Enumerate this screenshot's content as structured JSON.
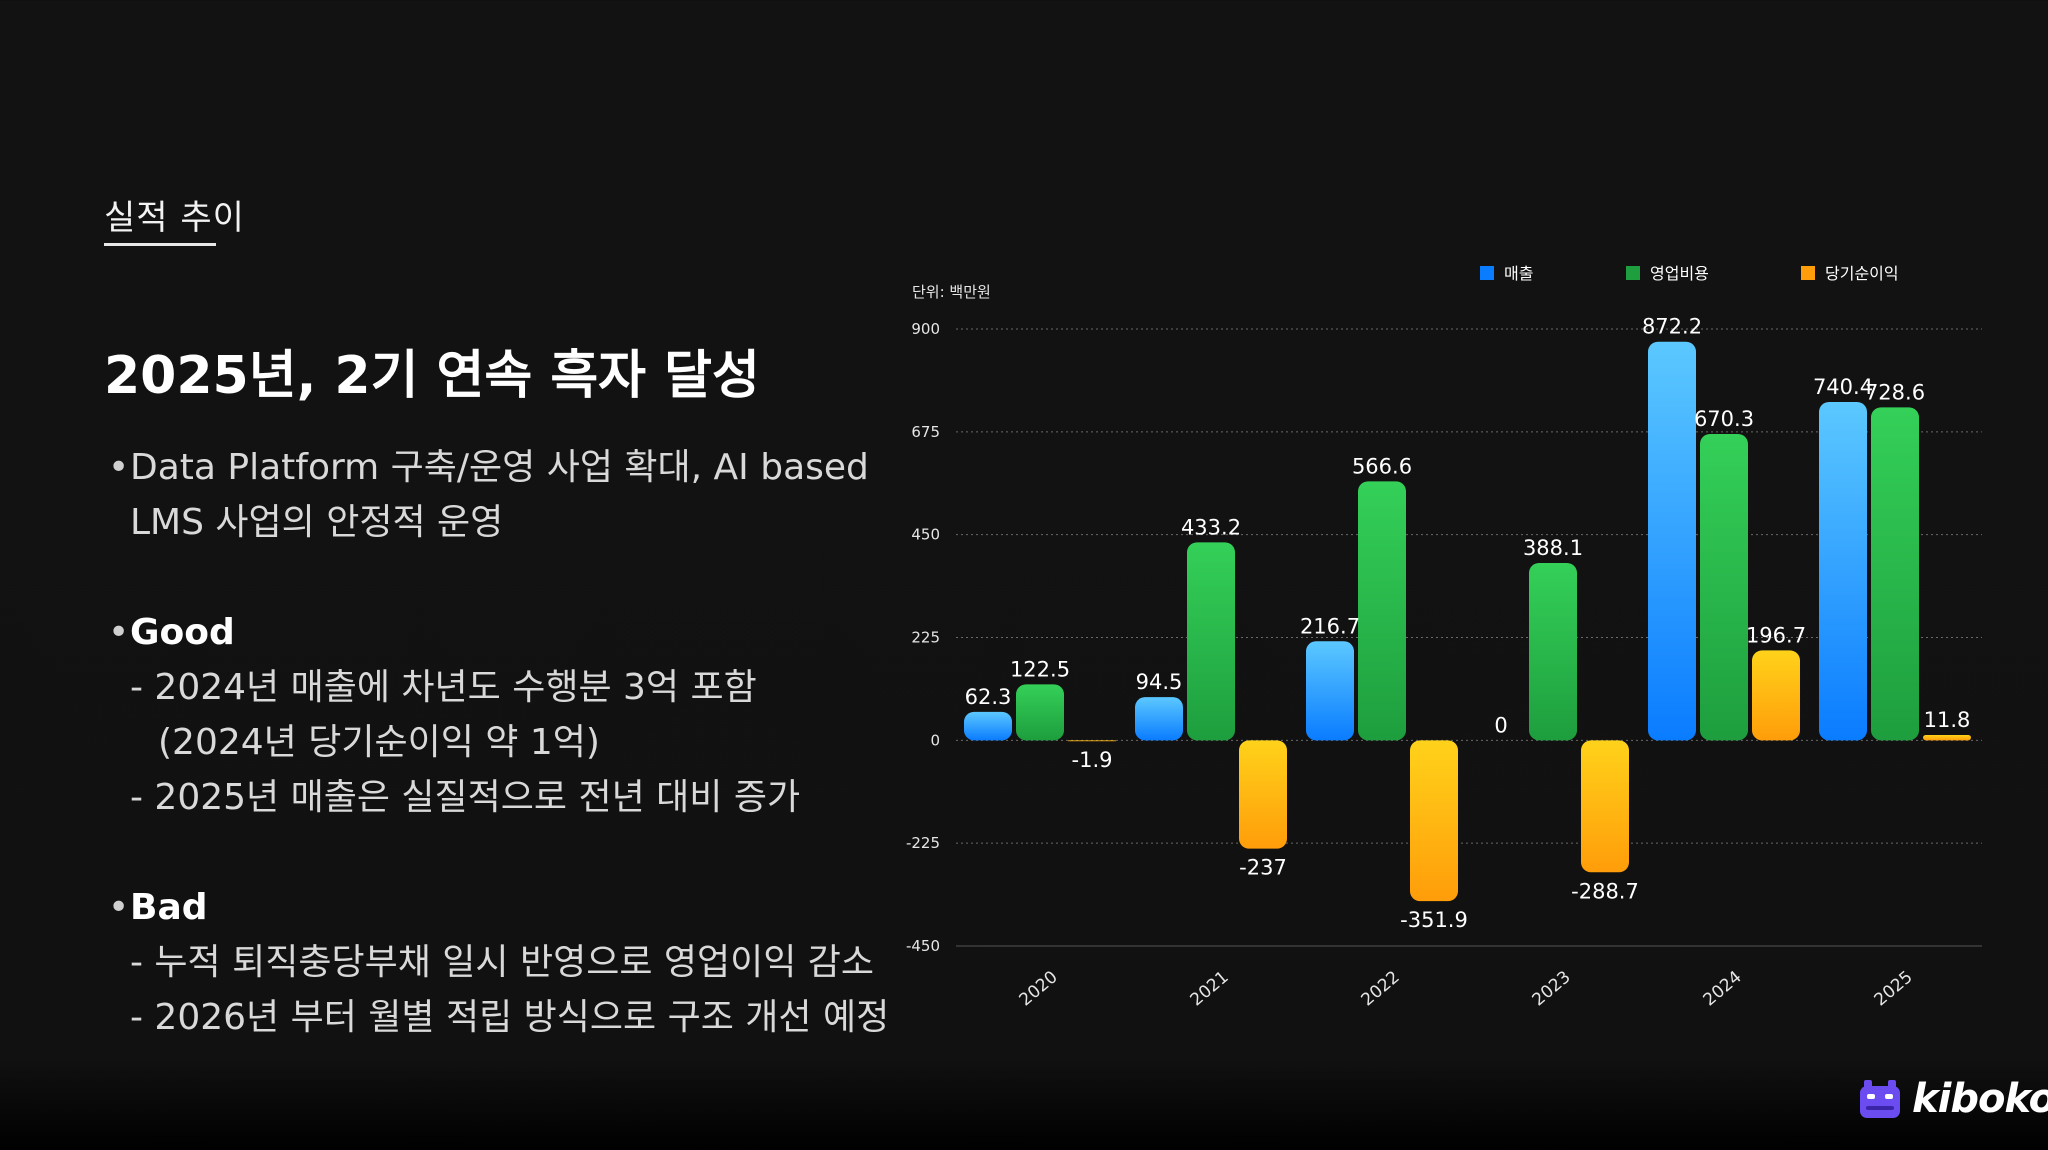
{
  "section_label": "실적 추이",
  "headline": "2025년, 2기 연속 흑자 달성",
  "bullets": {
    "intro_line1": "Data Platform 구축/운영 사업 확대, AI based",
    "intro_line2": "LMS  사업의 안정적 운영",
    "good_head": "Good",
    "good_1": "- 2024년 매출에 차년도 수행분 3억 포함",
    "good_1b": "(2024년 당기순이익 약 1억)",
    "good_2": "- 2025년 매출은 실질적으로 전년 대비 증가",
    "bad_head": "Bad",
    "bad_1": "- 누적 퇴직충당부채 일시 반영으로 영업이익 감소",
    "bad_2": "- 2026년 부터 월별 적립 방식으로 구조 개선 예정"
  },
  "logo_text": "kiboko",
  "logo_icon": "kiboko-hippo-icon",
  "chart_data": {
    "type": "bar",
    "unit_label": "단위: 백만원",
    "categories": [
      "2020",
      "2021",
      "2022",
      "2023",
      "2024",
      "2025"
    ],
    "series": [
      {
        "name": "매출",
        "color_top": "#5cc8ff",
        "color_bottom": "#0a7cff",
        "values": [
          62.3,
          94.5,
          216.7,
          0,
          872.2,
          740.4
        ]
      },
      {
        "name": "영업비용",
        "color_top": "#34d058",
        "color_bottom": "#1e9e3e",
        "values": [
          122.5,
          433.2,
          566.6,
          388.1,
          670.3,
          728.6
        ]
      },
      {
        "name": "당기순이익",
        "color_top": "#ffd21a",
        "color_bottom": "#ff9d0a",
        "values": [
          -1.9,
          -237,
          -351.9,
          -288.7,
          196.7,
          11.8
        ]
      }
    ],
    "ylim": [
      -450,
      900
    ],
    "yticks": [
      900,
      675,
      450,
      225,
      0,
      -225,
      -450
    ],
    "grid": true,
    "legend_position": "top-right"
  }
}
